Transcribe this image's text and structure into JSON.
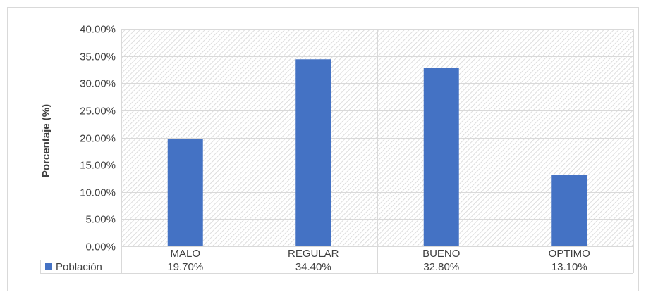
{
  "chart_data": {
    "type": "bar",
    "title": "",
    "xlabel": "",
    "ylabel": "Porcentaje (%)",
    "categories": [
      "MALO",
      "REGULAR",
      "BUENO",
      "OPTIMO"
    ],
    "series": [
      {
        "name": "Población",
        "values": [
          19.7,
          34.4,
          32.8,
          13.1
        ],
        "value_labels": [
          "19.70%",
          "34.40%",
          "32.80%",
          "13.10%"
        ],
        "color": "#4472c4"
      }
    ],
    "ylim": [
      0,
      40
    ],
    "yticks": [
      0,
      5,
      10,
      15,
      20,
      25,
      30,
      35,
      40
    ],
    "ytick_labels": [
      "0.00%",
      "5.00%",
      "10.00%",
      "15.00%",
      "20.00%",
      "25.00%",
      "30.00%",
      "35.00%",
      "40.00%"
    ],
    "grid": true,
    "plot_background": "diagonal hatch pattern",
    "legend": "data table below chart"
  }
}
